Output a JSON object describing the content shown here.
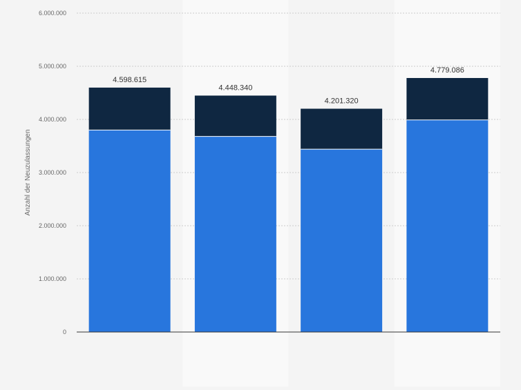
{
  "chart_data": {
    "type": "bar",
    "stacked": true,
    "title": "",
    "xlabel": "",
    "ylabel": "Anzahl der Neuzulassungen",
    "ylim": [
      0,
      6000000
    ],
    "yticks": [
      0,
      1000000,
      2000000,
      3000000,
      4000000,
      5000000,
      6000000
    ],
    "ytick_labels": [
      "0",
      "1.000.000",
      "2.000.000",
      "3.000.000",
      "4.000.000",
      "5.000.000",
      "6.000.000"
    ],
    "categories": [
      "",
      "",
      "",
      ""
    ],
    "series": [
      {
        "values": [
          3800000,
          3680000,
          3440000,
          3990000
        ],
        "color": "#2876dd"
      },
      {
        "values": [
          798615,
          768340,
          761320,
          789086
        ],
        "color": "#0f2741"
      }
    ],
    "totals": [
      4598615,
      4448340,
      4201320,
      4779086
    ],
    "total_labels": [
      "4.598.615",
      "4.448.340",
      "4.201.320",
      "4.779.086"
    ],
    "grid": true,
    "legend": "none",
    "background_color": "#f4f4f4",
    "alt_band_color": "#f9f9f9"
  }
}
